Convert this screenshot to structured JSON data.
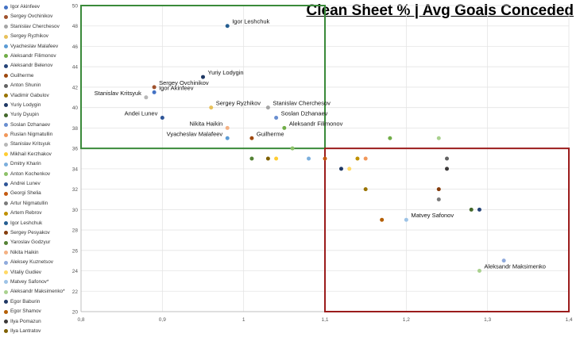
{
  "chart_data": {
    "type": "scatter",
    "title": "Clean Sheet % |  Avg Goals Conceded",
    "xlabel": "",
    "ylabel": "",
    "xlim": [
      0.8,
      1.4
    ],
    "ylim": [
      20,
      50
    ],
    "x_ticks": [
      "0,8",
      "0,9",
      "1",
      "1,1",
      "1,2",
      "1,3",
      "1,4"
    ],
    "y_ticks": [
      "20",
      "22",
      "24",
      "26",
      "28",
      "30",
      "32",
      "34",
      "36",
      "38",
      "40",
      "42",
      "44",
      "46",
      "48",
      "50"
    ],
    "grid": true,
    "legend_position": "left",
    "highlight_boxes": [
      {
        "name": "top-left-box",
        "color": "#3a8a3a",
        "x": [
          0.8,
          1.1
        ],
        "y": [
          36,
          50
        ]
      },
      {
        "name": "bottom-right-box",
        "color": "#9b1c1c",
        "x": [
          1.1,
          1.4
        ],
        "y": [
          20,
          36
        ]
      }
    ],
    "series": [
      {
        "name": "Igor Akinfeev",
        "color": "#4472c4",
        "x": 0.89,
        "y": 41.5,
        "label": "Igor Akinfeev",
        "label_pos": "right"
      },
      {
        "name": "Sergey Ovchinikov",
        "color": "#a0522d",
        "x": 0.89,
        "y": 42.0,
        "label": "Sergey Ovchinikov",
        "label_pos": "right"
      },
      {
        "name": "Stanislav Cherchesov",
        "color": "#a5a5a5",
        "x": 1.03,
        "y": 40.0,
        "label": "Stanislav Cherchesov",
        "label_pos": "right"
      },
      {
        "name": "Sergey Ryzhikov",
        "color": "#e8c15a",
        "x": 0.96,
        "y": 40.0,
        "label": "Sergey Ryzhikov",
        "label_pos": "right"
      },
      {
        "name": "Vyacheslav Malafeev",
        "color": "#5b9bd5",
        "x": 0.98,
        "y": 37.0,
        "label": "Vyacheslav Malafeev",
        "label_pos": "left"
      },
      {
        "name": "Aleksandr Filimonov",
        "color": "#70ad47",
        "x": 1.05,
        "y": 38.0,
        "label": "Aleksandr Filimonov",
        "label_pos": "right"
      },
      {
        "name": "Aleksandr Belenov",
        "color": "#264478",
        "x": 1.29,
        "y": 30.0
      },
      {
        "name": "Guilherme",
        "color": "#9e480e",
        "x": 1.01,
        "y": 37.0,
        "label": "Guilherme",
        "label_pos": "right"
      },
      {
        "name": "Anton Shunin",
        "color": "#636363",
        "x": 1.25,
        "y": 35.0
      },
      {
        "name": "Vladimir Gabulov",
        "color": "#997300",
        "x": 1.15,
        "y": 32.0
      },
      {
        "name": "Yuriy Lodygin",
        "color": "#1f3864",
        "x": 0.95,
        "y": 43.0,
        "label": "Yuriy Lodygin",
        "label_pos": "right"
      },
      {
        "name": "Yuriy Dyupin",
        "color": "#43682b",
        "x": 1.28,
        "y": 30.0
      },
      {
        "name": "Soslan Dzhanaev",
        "color": "#698ed0",
        "x": 1.04,
        "y": 39.0,
        "label": "Soslan Dzhanaev",
        "label_pos": "right"
      },
      {
        "name": "Ruslan Nigmatullin",
        "color": "#f1975a",
        "x": 1.15,
        "y": 35.0
      },
      {
        "name": "Stanislav Kritsyuk",
        "color": "#b7b7b7",
        "x": 0.88,
        "y": 41.0,
        "label": "Stanislav Kritsyuk",
        "label_pos": "left"
      },
      {
        "name": "Mikhail Kerzhakov",
        "color": "#ffcd33",
        "x": 1.04,
        "y": 35.0
      },
      {
        "name": "Dmitry Kharin",
        "color": "#7cafdd",
        "x": 1.08,
        "y": 35.0
      },
      {
        "name": "Anton Kochenkov",
        "color": "#8cc168",
        "x": 1.06,
        "y": 36.0
      },
      {
        "name": "Andrei Lunev",
        "color": "#2e5597",
        "x": 0.9,
        "y": 39.0,
        "label": "Andei Lunev",
        "label_pos": "left"
      },
      {
        "name": "Georgi Shelia",
        "color": "#c55a11",
        "x": 1.1,
        "y": 35.0
      },
      {
        "name": "Artur Nigmatullin",
        "color": "#7b7b7b",
        "x": 1.24,
        "y": 31.0
      },
      {
        "name": "Artem Rebrov",
        "color": "#bf9000",
        "x": 1.14,
        "y": 35.0
      },
      {
        "name": "Igor Leshchuk",
        "color": "#255e91",
        "x": 0.98,
        "y": 48.0,
        "label": "Igor Leshchuk",
        "label_pos": "right"
      },
      {
        "name": "Sergey Pesyakov",
        "color": "#843c0c",
        "x": 1.24,
        "y": 32.0
      },
      {
        "name": "Yaroslav Godzyur",
        "color": "#548235",
        "x": 1.01,
        "y": 35.0
      },
      {
        "name": "Nikita Haikin",
        "color": "#f4b183",
        "x": 0.98,
        "y": 38.0,
        "label": "Nikita Haikin",
        "label_pos": "left"
      },
      {
        "name": "Aleksey Kuznetsov",
        "color": "#8faadc",
        "x": 1.32,
        "y": 25.0
      },
      {
        "name": "Vitaliy Gudiev",
        "color": "#ffd966",
        "x": 1.13,
        "y": 34.0
      },
      {
        "name": "Matvey Safonov*",
        "color": "#9dc3e6",
        "x": 1.2,
        "y": 29.0,
        "label": "Matvey Safonov",
        "label_pos": "right"
      },
      {
        "name": "Aleksandr Maksimenko*",
        "color": "#a9d18e",
        "x": 1.29,
        "y": 24.0,
        "label": "Aleksandr Maksimenko",
        "label_pos": "right"
      },
      {
        "name": "Egor Baburin",
        "color": "#203864",
        "x": 1.12,
        "y": 34.0
      },
      {
        "name": "Egor Shamov",
        "color": "#b45f06",
        "x": 1.17,
        "y": 29.0
      },
      {
        "name": "Ilya Pomazun",
        "color": "#3b3838",
        "x": 1.25,
        "y": 34.0
      },
      {
        "name": "Ilya Lantratov",
        "color": "#7f6000",
        "x": 1.03,
        "y": 35.0
      }
    ],
    "extra_points": [
      {
        "color": "#70ad47",
        "x": 1.18,
        "y": 37.0
      },
      {
        "color": "#a9d18e",
        "x": 1.24,
        "y": 37.0
      }
    ]
  }
}
